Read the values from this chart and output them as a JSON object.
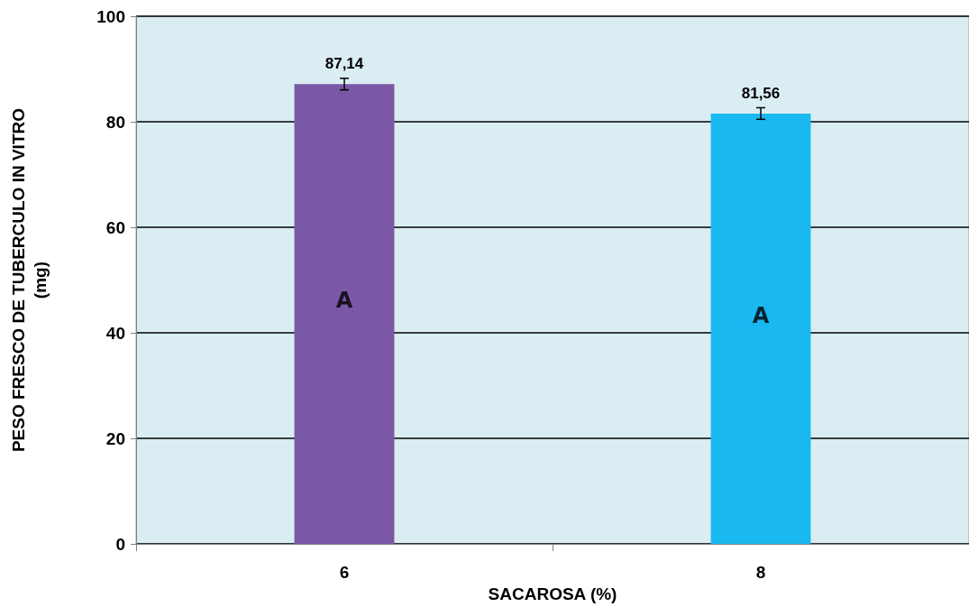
{
  "chart_data": {
    "type": "bar",
    "xlabel": "SACAROSA (%)",
    "ylabel": "PESO FRESCO DE TUBERCULO IN VITRO\n(mg)",
    "categories": [
      "6",
      "8"
    ],
    "values": [
      87.14,
      81.56
    ],
    "colors": [
      "#7b58a6",
      "#19b8f0"
    ],
    "errors": [
      1.1,
      1.1
    ],
    "value_labels": [
      "87,14",
      "81,56"
    ],
    "annotations": [
      "A",
      "A"
    ],
    "ylim": [
      0,
      100
    ],
    "yticks": [
      0,
      20,
      40,
      60,
      80,
      100
    ],
    "grid": "y"
  }
}
